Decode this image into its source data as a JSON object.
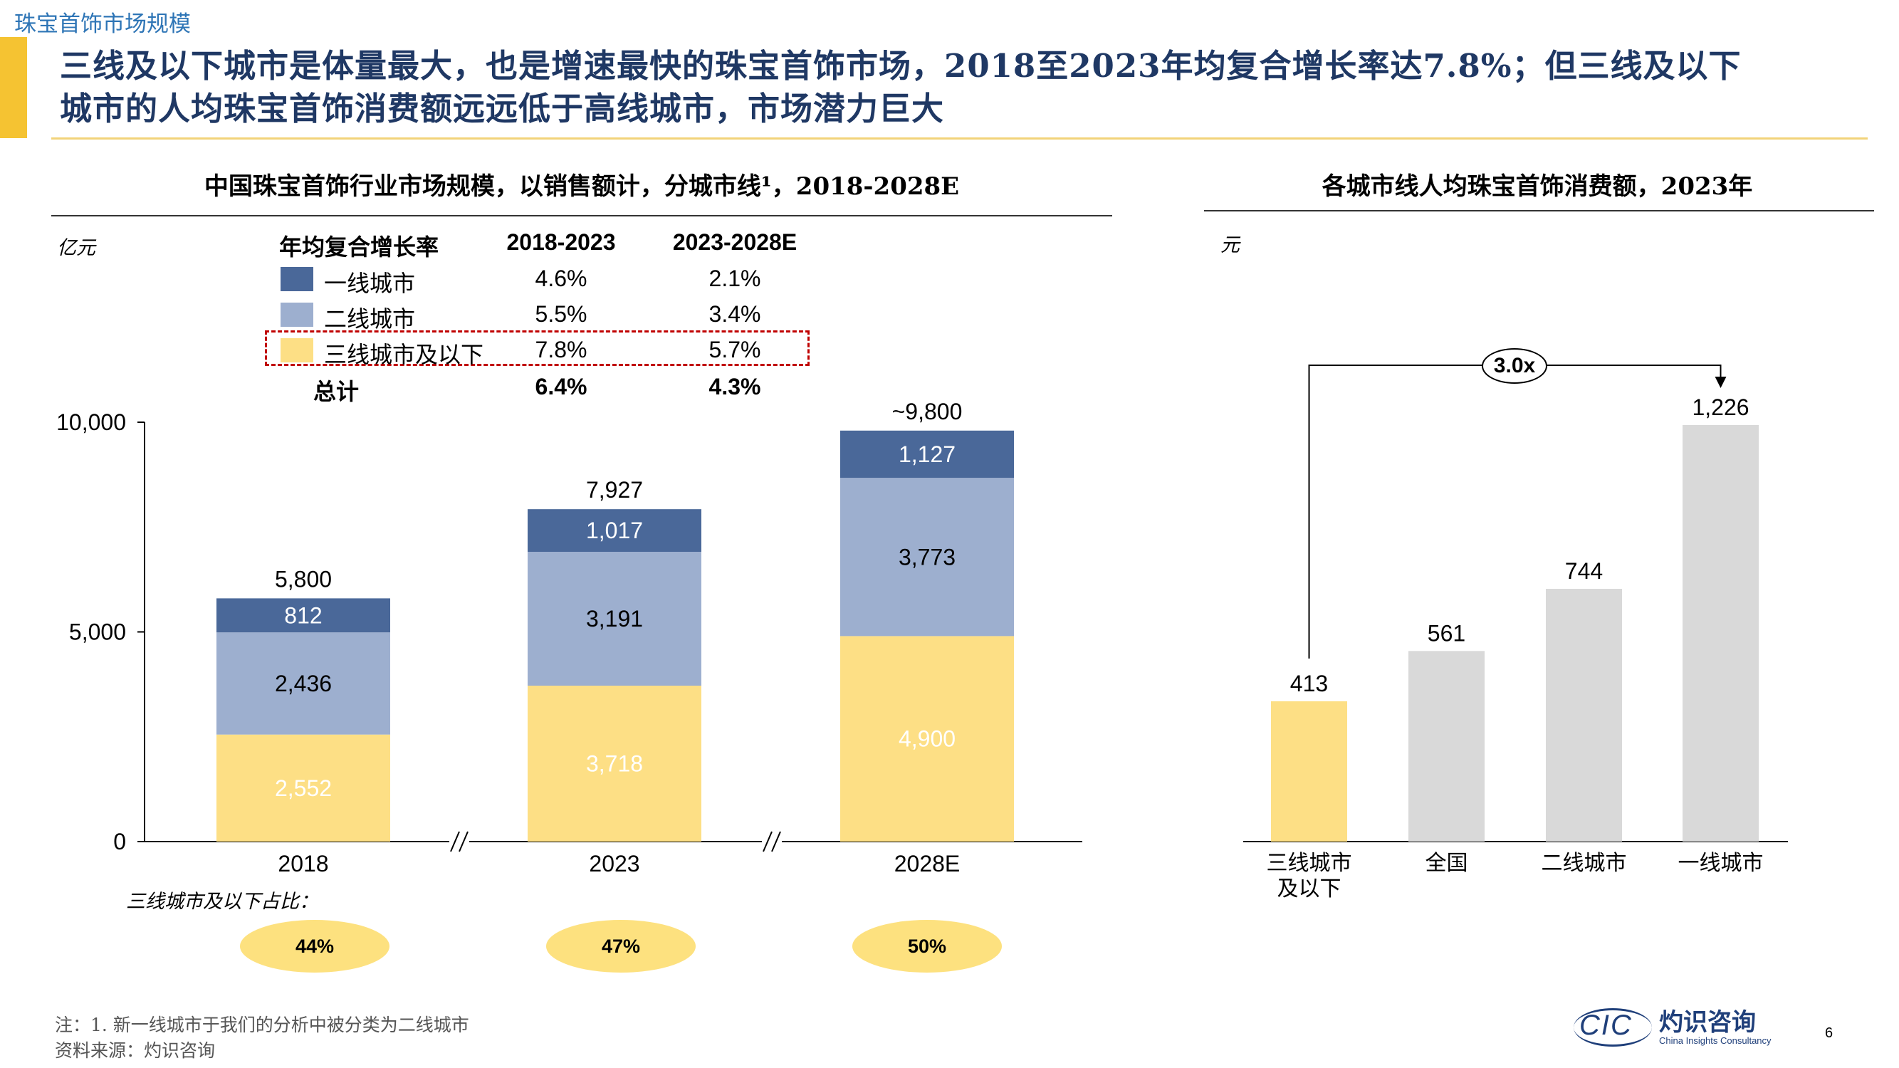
{
  "header": {
    "section_label": "珠宝首饰市场规模",
    "title_line1": "三线及以下城市是体量最大，也是增速最快的珠宝首饰市场，2018至2023年均复合增长率达7.8%；但三线及以下",
    "title_line2": "城市的人均珠宝首饰消费额远远低于高线城市，市场潜力巨大"
  },
  "colors": {
    "accent_yellow": "#f5c332",
    "title_navy": "#1f3864",
    "tier1": "#4a6899",
    "tier2": "#9dafcf",
    "tier3": "#fddf85",
    "grey_bar": "#d9d9d9",
    "highlight_red": "#c00000",
    "section_blue": "#2e75b6"
  },
  "left_chart": {
    "title": "中国珠宝首饰行业市场规模，以销售额计，分城市线¹，2018-2028E",
    "unit": "亿元",
    "cagr_table": {
      "header": [
        "年均复合增长率",
        "2018-2023",
        "2023-2028E"
      ],
      "rows": [
        {
          "label": "一线城市",
          "a": "4.6%",
          "b": "2.1%"
        },
        {
          "label": "二线城市",
          "a": "5.5%",
          "b": "3.4%"
        },
        {
          "label": "三线城市及以下",
          "a": "7.8%",
          "b": "5.7%"
        },
        {
          "label": "总计",
          "a": "6.4%",
          "b": "4.3%"
        }
      ]
    },
    "share_label": "三线城市及以下占比：",
    "shares": [
      "44%",
      "47%",
      "50%"
    ]
  },
  "chart_data": [
    {
      "type": "bar",
      "stacked": true,
      "categories": [
        "2018",
        "2023",
        "2028E"
      ],
      "series": [
        {
          "name": "三线城市及以下",
          "values": [
            2552,
            3718,
            4900
          ]
        },
        {
          "name": "二线城市",
          "values": [
            2436,
            3191,
            3773
          ]
        },
        {
          "name": "一线城市",
          "values": [
            812,
            1017,
            1127
          ]
        }
      ],
      "value_labels": [
        [
          "2,552",
          "2,436",
          "812"
        ],
        [
          "3,718",
          "3,191",
          "1,017"
        ],
        [
          "4,900",
          "3,773",
          "1,127"
        ]
      ],
      "totals": [
        "5,800",
        "7,927",
        "~9,800"
      ],
      "ylabel": "亿元",
      "ylim": [
        0,
        10000
      ],
      "yticks": [
        "0",
        "5,000",
        "10,000"
      ],
      "axis_break": true,
      "grid": false
    },
    {
      "type": "bar",
      "title": "各城市线人均珠宝首饰消费额，2023年",
      "ylabel": "元",
      "categories": [
        "三线城市及以下",
        "全国",
        "二线城市",
        "一线城市"
      ],
      "category_lines": [
        [
          "三线城市",
          "及以下"
        ],
        [
          "全国"
        ],
        [
          "二线城市"
        ],
        [
          "一线城市"
        ]
      ],
      "values": [
        413,
        561,
        744,
        1226
      ],
      "value_labels": [
        "413",
        "561",
        "744",
        "1,226"
      ],
      "annotation": "3.0x",
      "grid": false
    }
  ],
  "footer": {
    "note": "注：1. 新一线城市于我们的分析中被分类为二线城市",
    "source": "资料来源：灼识咨询",
    "logo": {
      "mark": "CIC",
      "name_cn": "灼识咨询",
      "name_en": "China Insights Consultancy"
    },
    "page_number": "6"
  }
}
